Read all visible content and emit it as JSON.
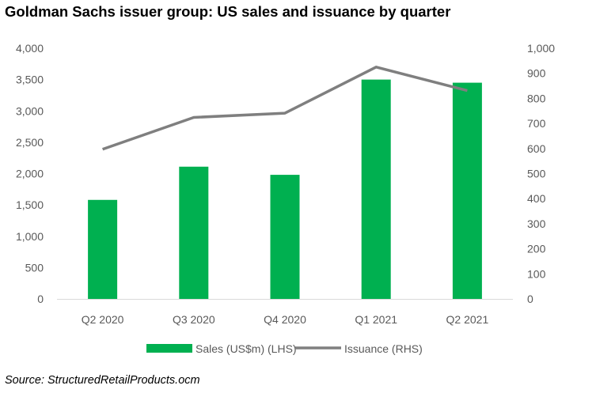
{
  "title": "Goldman Sachs issuer group: US sales and issuance by quarter",
  "source": "Source: StructuredRetailProducts.ocm",
  "colors": {
    "bar": "#00B050",
    "line": "#7F7F7F",
    "axis_text": "#595959",
    "baseline": "#D9D9D9"
  },
  "chart_data": {
    "type": "bar",
    "categories": [
      "Q2 2020",
      "Q3 2020",
      "Q4 2020",
      "Q1 2021",
      "Q2 2021"
    ],
    "series": [
      {
        "name": "Sales (US$m) (LHS)",
        "type": "bar",
        "axis": "left",
        "values": [
          1580,
          2110,
          1980,
          3500,
          3450
        ]
      },
      {
        "name": "Issuance (RHS)",
        "type": "line",
        "axis": "right",
        "values": [
          597,
          724,
          741,
          925,
          831
        ]
      }
    ],
    "left_axis": {
      "ylim": [
        0,
        4000
      ],
      "ticks": [
        "0",
        "500",
        "1,000",
        "1,500",
        "2,000",
        "2,500",
        "3,000",
        "3,500",
        "4,000"
      ]
    },
    "right_axis": {
      "ylim": [
        0,
        1000
      ],
      "ticks": [
        "0",
        "100",
        "200",
        "300",
        "400",
        "500",
        "600",
        "700",
        "800",
        "900",
        "1,000"
      ]
    },
    "grid": false,
    "legend": "bottom"
  }
}
